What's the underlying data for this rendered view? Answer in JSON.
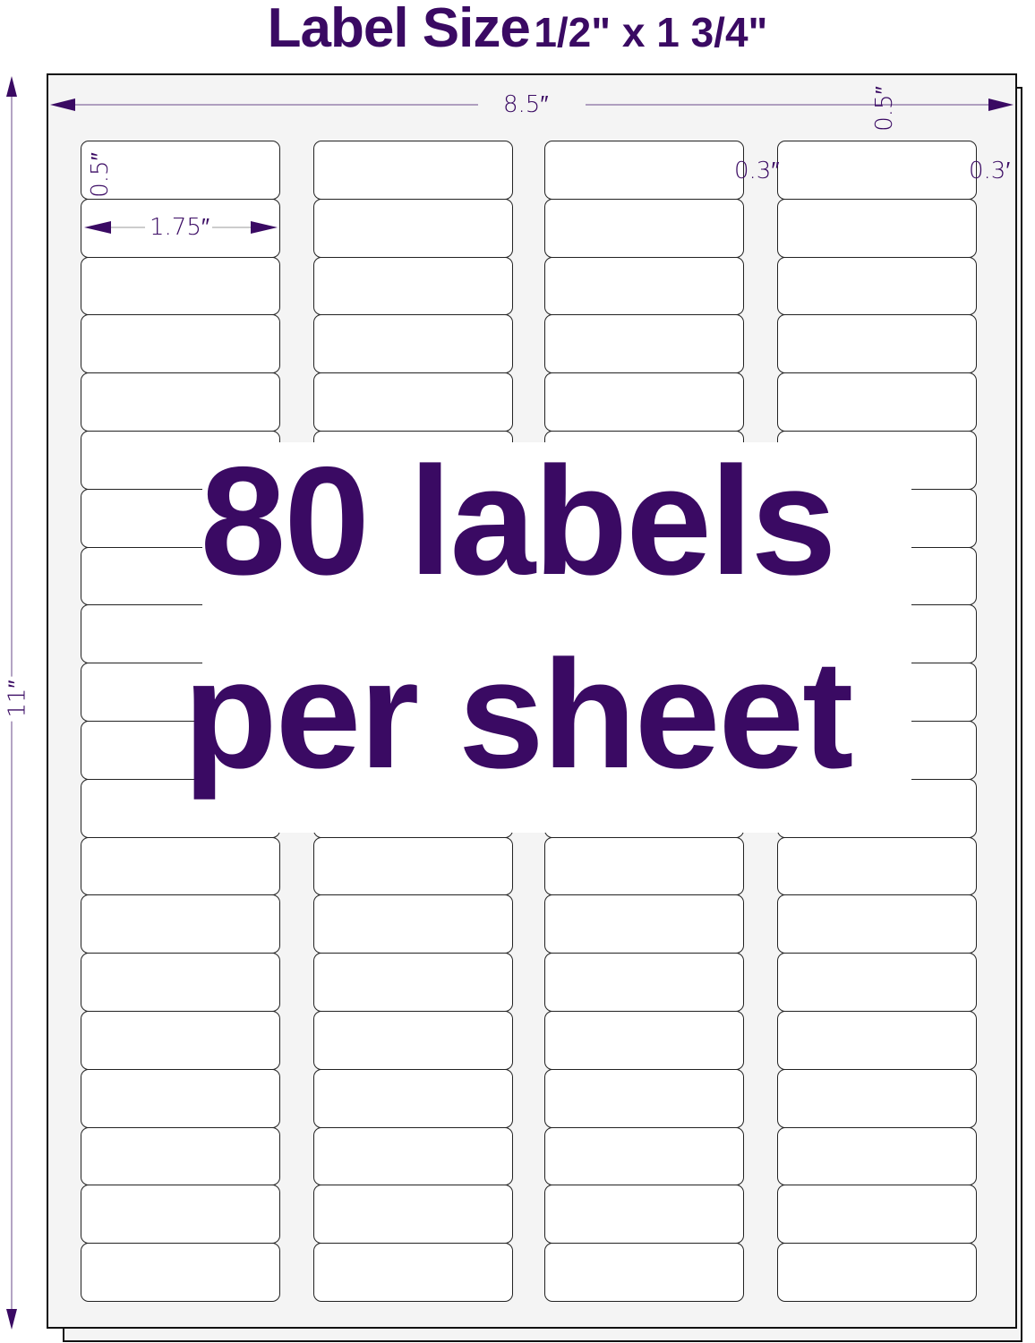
{
  "title": {
    "main": "Label Size",
    "size": "1/2\" x 1 3/4\""
  },
  "dimensions": {
    "sheet_width": "8.5″",
    "sheet_height": "11″",
    "top_margin": "0.5″",
    "label_height": "0.5″",
    "label_width": "1.75″",
    "column_gap": "0.3″",
    "side_margin": "0.3′"
  },
  "headline": {
    "line1": "80 labels",
    "line2": "per sheet"
  },
  "grid": {
    "columns": 4,
    "rows": 20
  },
  "colors": {
    "accent": "#3a0a63",
    "sheet": "#f4f4f4",
    "label": "#ffffff"
  }
}
